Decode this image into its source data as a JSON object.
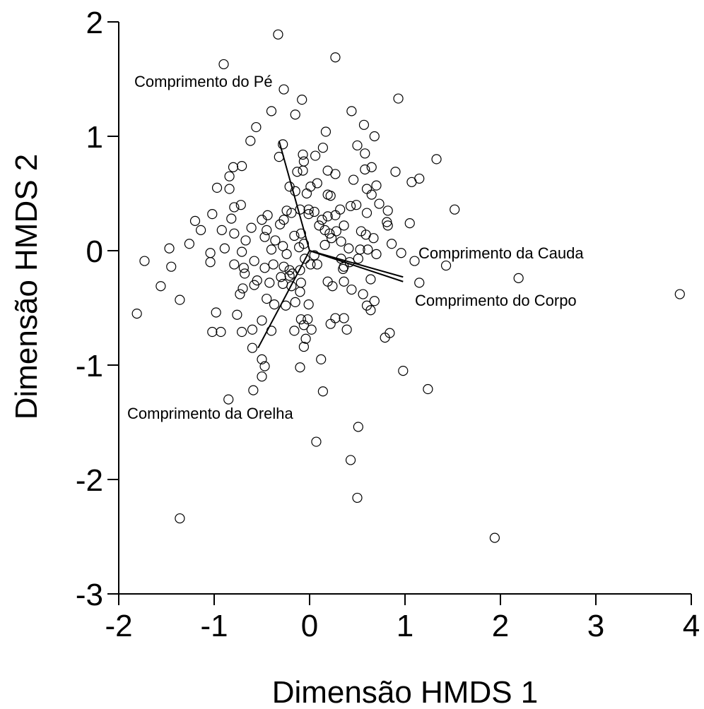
{
  "chart_data": {
    "type": "scatter",
    "x_label": "Dimensão HMDS 1",
    "y_label": "Dimensão HMDS 2",
    "xlim": [
      -2,
      4
    ],
    "ylim": [
      -3,
      2
    ],
    "xticks": [
      -2,
      -1,
      0,
      1,
      2,
      3,
      4
    ],
    "yticks": [
      -3,
      -2,
      -1,
      0,
      1,
      2
    ],
    "marker_color": "#000000",
    "vectors": [
      {
        "name": "Comprimento do Pé",
        "x": -0.32,
        "y": 0.96
      },
      {
        "name": "Comprimento da Cauda",
        "x": 0.98,
        "y": -0.23
      },
      {
        "name": "Comprimento do Corpo",
        "x": 0.98,
        "y": -0.27
      },
      {
        "name": "Comprimento da Orelha",
        "x": -0.54,
        "y": -0.85
      }
    ],
    "x": [
      -0.33,
      0.27,
      -0.9,
      -0.27,
      -0.08,
      0.93,
      -0.4,
      0.44,
      -0.15,
      0.57,
      -0.56,
      0.17,
      0.68,
      -0.62,
      0.5,
      -0.28,
      0.14,
      -0.07,
      0.06,
      0.58,
      -0.32,
      1.33,
      -0.8,
      -0.71,
      -0.06,
      0.65,
      0.58,
      -0.07,
      0.19,
      -0.13,
      0.27,
      0.9,
      -0.84,
      0.46,
      1.15,
      1.07,
      -0.97,
      -0.84,
      -0.21,
      0.01,
      0.08,
      0.7,
      0.6,
      -0.03,
      0.19,
      0.22,
      0.65,
      -0.15,
      -0.72,
      -0.79,
      0.43,
      0.49,
      0.73,
      0.32,
      1.52,
      -0.24,
      -0.1,
      -0.01,
      0.05,
      0.82,
      -1.02,
      -0.44,
      0.19,
      0.6,
      -0.01,
      -0.19,
      0.27,
      0.13,
      -1.2,
      -0.82,
      -0.27,
      -0.5,
      0.81,
      1.05,
      -0.31,
      0.1,
      0.36,
      0.82,
      -1.14,
      -0.61,
      -0.92,
      -0.45,
      0.16,
      0.28,
      0.54,
      -0.79,
      -0.09,
      0.21,
      -0.16,
      0.59,
      0.23,
      0.67,
      0.33,
      -0.36,
      -0.67,
      -0.47,
      -0.06,
      -1.26,
      -0.28,
      0.16,
      0.86,
      -1.47,
      -0.89,
      -0.4,
      -0.11,
      0.41,
      0.53,
      0.61,
      -1.04,
      -0.71,
      0.96,
      -0.24,
      0.7,
      0.05,
      -0.05,
      0.33,
      -0.58,
      0.51,
      -1.73,
      1.1,
      -1.04,
      0.01,
      0.08,
      0.42,
      -0.79,
      -0.38,
      -0.27,
      -1.45,
      -0.47,
      0.36,
      1.43,
      -0.69,
      0.35,
      -0.1,
      -0.21,
      -0.68,
      -0.18,
      -0.3,
      2.19,
      -0.21,
      0.64,
      0.36,
      0.19,
      1.15,
      -0.09,
      -0.42,
      -0.28,
      -0.58,
      -1.56,
      0.24,
      -0.55,
      -0.19,
      -0.1,
      -0.7,
      0.44,
      0.56,
      -0.73,
      3.88,
      -0.45,
      -1.36,
      0.68,
      -0.15,
      -0.37,
      -0.01,
      -0.25,
      0.6,
      -0.76,
      -0.98,
      -1.81,
      0.64,
      -0.5,
      -0.09,
      0.27,
      0.36,
      -0.02,
      0.22,
      -0.06,
      -0.71,
      -0.93,
      -1.02,
      -0.16,
      -0.6,
      -0.4,
      0.02,
      0.39,
      0.84,
      0.79,
      -0.04,
      -0.06,
      -0.6,
      -0.5,
      0.12,
      -0.47,
      -0.1,
      0.98,
      -0.5,
      -0.59,
      0.14,
      1.24,
      -0.85,
      0.51,
      0.07,
      0.43,
      0.5,
      -1.36,
      1.94
    ],
    "y": [
      1.89,
      1.69,
      1.63,
      1.41,
      1.32,
      1.33,
      1.22,
      1.22,
      1.19,
      1.1,
      1.08,
      1.04,
      1.0,
      0.96,
      0.92,
      0.93,
      0.9,
      0.84,
      0.83,
      0.85,
      0.82,
      0.8,
      0.73,
      0.74,
      0.78,
      0.73,
      0.71,
      0.7,
      0.7,
      0.69,
      0.67,
      0.69,
      0.65,
      0.62,
      0.63,
      0.6,
      0.55,
      0.54,
      0.56,
      0.56,
      0.59,
      0.57,
      0.54,
      0.5,
      0.49,
      0.48,
      0.49,
      0.52,
      0.4,
      0.38,
      0.39,
      0.4,
      0.41,
      0.36,
      0.36,
      0.35,
      0.36,
      0.36,
      0.34,
      0.35,
      0.32,
      0.31,
      0.3,
      0.33,
      0.32,
      0.33,
      0.31,
      0.27,
      0.26,
      0.28,
      0.27,
      0.27,
      0.25,
      0.24,
      0.23,
      0.22,
      0.22,
      0.22,
      0.18,
      0.2,
      0.18,
      0.18,
      0.18,
      0.17,
      0.17,
      0.15,
      0.15,
      0.15,
      0.13,
      0.14,
      0.11,
      0.11,
      0.08,
      0.09,
      0.09,
      0.12,
      0.06,
      0.06,
      0.04,
      0.05,
      0.06,
      0.02,
      0.02,
      0.01,
      0.03,
      0.02,
      0.01,
      0.01,
      -0.02,
      -0.01,
      -0.02,
      -0.03,
      -0.03,
      -0.04,
      -0.07,
      -0.07,
      -0.09,
      -0.07,
      -0.09,
      -0.09,
      -0.1,
      -0.12,
      -0.12,
      -0.1,
      -0.12,
      -0.12,
      -0.14,
      -0.14,
      -0.15,
      -0.14,
      -0.13,
      -0.15,
      -0.16,
      -0.17,
      -0.17,
      -0.2,
      -0.2,
      -0.23,
      -0.24,
      -0.22,
      -0.25,
      -0.27,
      -0.27,
      -0.28,
      -0.28,
      -0.28,
      -0.29,
      -0.3,
      -0.31,
      -0.31,
      -0.26,
      -0.31,
      -0.36,
      -0.33,
      -0.34,
      -0.38,
      -0.38,
      -0.38,
      -0.42,
      -0.43,
      -0.44,
      -0.45,
      -0.47,
      -0.47,
      -0.48,
      -0.48,
      -0.56,
      -0.54,
      -0.55,
      -0.52,
      -0.61,
      -0.6,
      -0.59,
      -0.59,
      -0.6,
      -0.64,
      -0.65,
      -0.71,
      -0.71,
      -0.71,
      -0.7,
      -0.69,
      -0.7,
      -0.69,
      -0.69,
      -0.72,
      -0.76,
      -0.77,
      -0.84,
      -0.85,
      -0.95,
      -0.95,
      -1.01,
      -1.02,
      -1.05,
      -1.1,
      -1.22,
      -1.23,
      -1.21,
      -1.3,
      -1.54,
      -1.67,
      -1.83,
      -2.16,
      -2.34,
      -2.51
    ]
  }
}
